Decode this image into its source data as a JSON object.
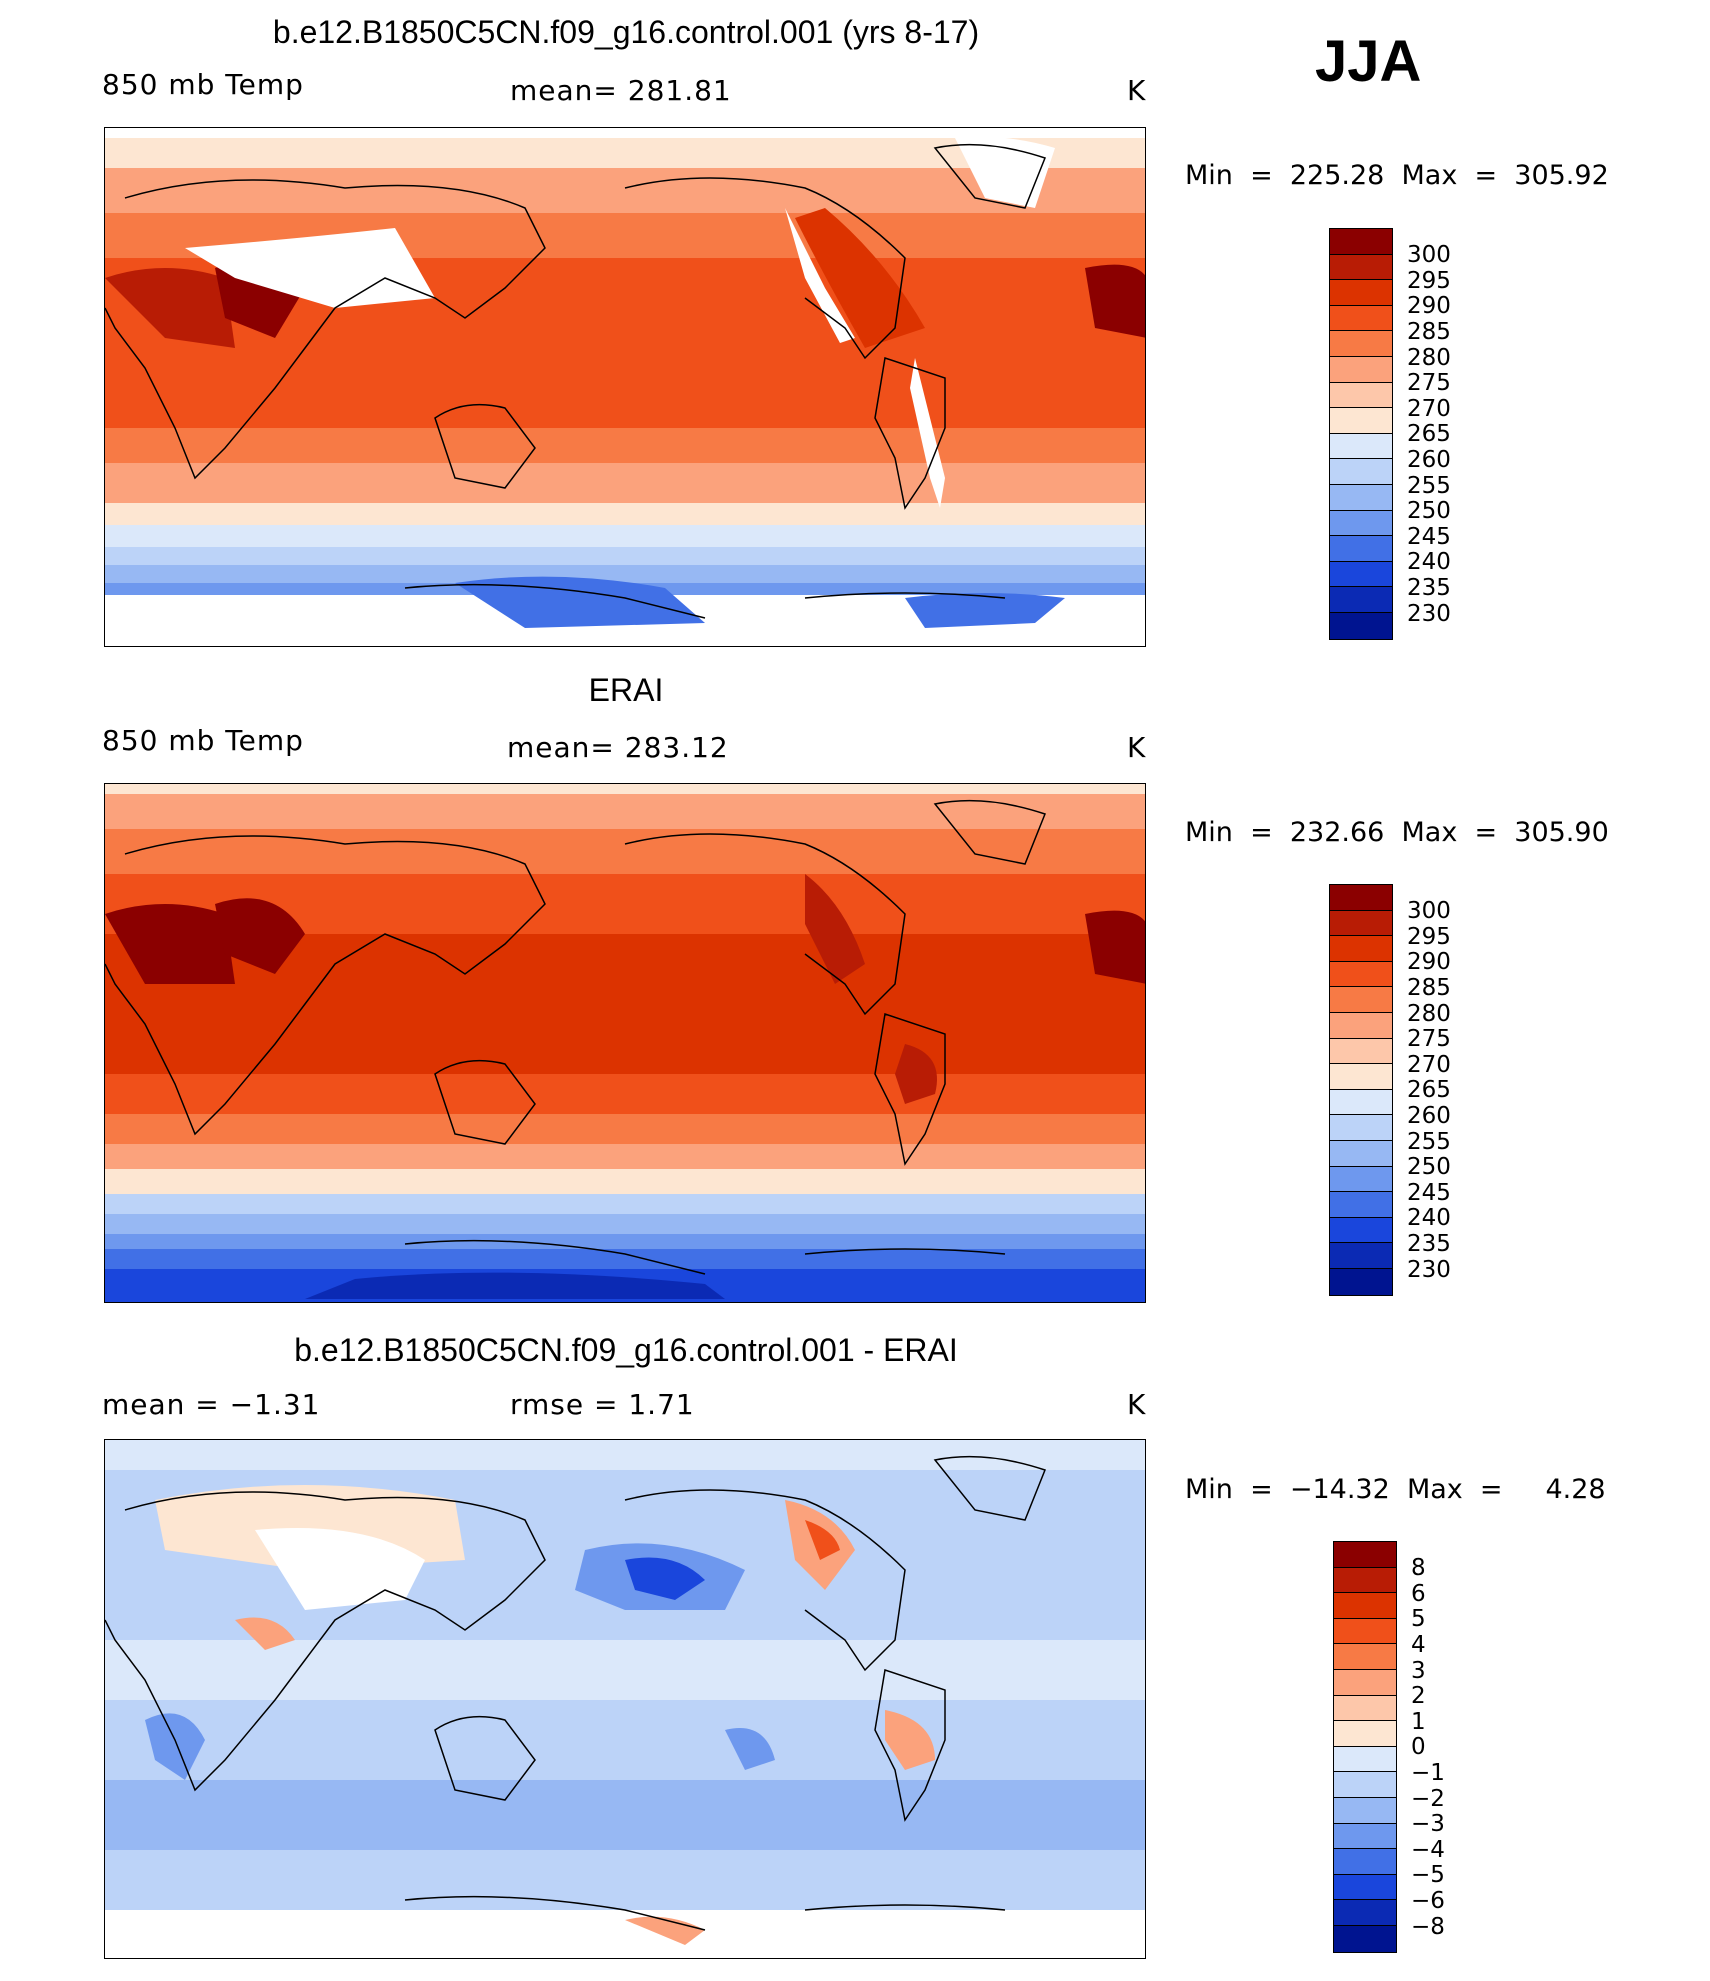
{
  "season": "JJA",
  "panels": [
    {
      "title": "b.e12.B1850C5CN.f09_g16.control.001 (yrs 8-17)",
      "left_label": "850 mb Temp",
      "center_label": "mean= 281.81",
      "units": "K",
      "minmax": "Min  =  225.28  Max  =  305.92"
    },
    {
      "title": "ERAI",
      "left_label": "850 mb Temp",
      "center_label": "mean= 283.12",
      "units": "K",
      "minmax": "Min  =  232.66  Max  =  305.90"
    },
    {
      "title": "b.e12.B1850C5CN.f09_g16.control.001 - ERAI",
      "left_label": "mean =    −1.31",
      "center_label": "rmse =     1.71",
      "units": "K",
      "minmax": "Min  =  −14.32  Max  =     4.28"
    }
  ],
  "colorbar_temp": {
    "labels": [
      "300",
      "295",
      "290",
      "285",
      "280",
      "275",
      "270",
      "265",
      "260",
      "255",
      "250",
      "245",
      "240",
      "235",
      "230"
    ],
    "colors": [
      "#8b0000",
      "#b81c05",
      "#dc3300",
      "#f0501a",
      "#f77a45",
      "#fba27c",
      "#fdc7aa",
      "#fde6d2",
      "#dbe8fa",
      "#bcd3f8",
      "#97b8f3",
      "#6e98ee",
      "#4170e6",
      "#1a46dc",
      "#0b2ab4",
      "#001490"
    ]
  },
  "colorbar_diff": {
    "labels": [
      "8",
      "6",
      "5",
      "4",
      "3",
      "2",
      "1",
      "0",
      "−1",
      "−2",
      "−3",
      "−4",
      "−5",
      "−6",
      "−8"
    ],
    "colors": [
      "#8b0000",
      "#b81c05",
      "#dc3300",
      "#f0501a",
      "#f77a45",
      "#fba27c",
      "#fdc7aa",
      "#fde6d2",
      "#dbe8fa",
      "#bcd3f8",
      "#97b8f3",
      "#6e98ee",
      "#4170e6",
      "#1a46dc",
      "#0b2ab4",
      "#001490"
    ]
  }
}
